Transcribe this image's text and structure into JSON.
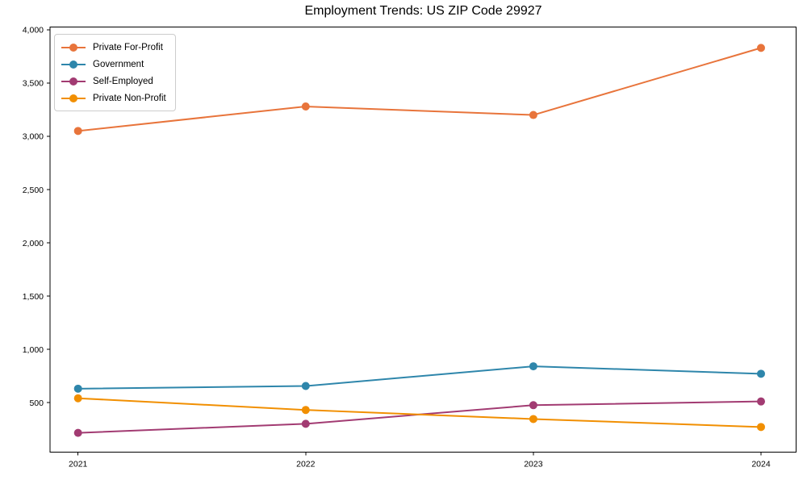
{
  "chart_data": {
    "type": "line",
    "title": "Employment Trends: US ZIP Code 29927",
    "categories": [
      "2021",
      "2022",
      "2023",
      "2024"
    ],
    "series": [
      {
        "name": "Private For-Profit",
        "color": "#E8743B",
        "values": [
          3050,
          3280,
          3200,
          3830
        ]
      },
      {
        "name": "Government",
        "color": "#2E86AB",
        "values": [
          630,
          655,
          840,
          770
        ]
      },
      {
        "name": "Self-Employed",
        "color": "#A23B72",
        "values": [
          215,
          300,
          475,
          510
        ]
      },
      {
        "name": "Private Non-Profit",
        "color": "#F18F01",
        "values": [
          540,
          430,
          345,
          270
        ]
      }
    ],
    "yticks": [
      500,
      1000,
      1500,
      2000,
      2500,
      3000,
      3500,
      4000
    ],
    "ylim": [
      34,
      4026
    ],
    "xlabel": "",
    "ylabel": "",
    "grid": false,
    "legend_position": "upper left",
    "axis_color": "#000000",
    "background_color": "#ffffff"
  }
}
